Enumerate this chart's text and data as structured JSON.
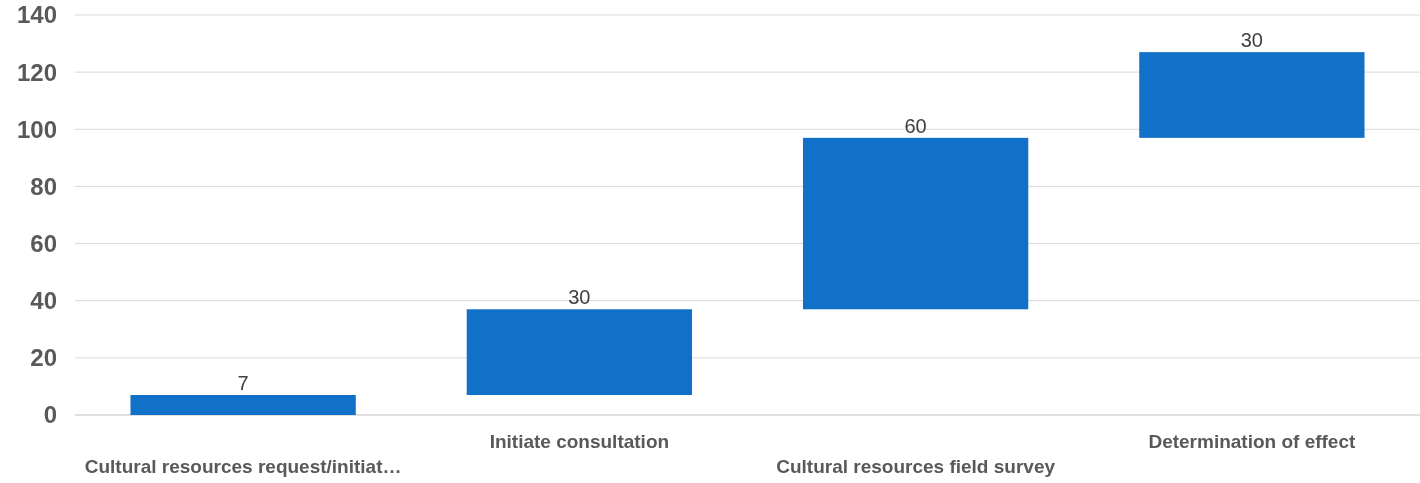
{
  "chart_data": {
    "type": "bar",
    "categories": [
      "Cultural resources request/initiat…",
      "Initiate consultation",
      "Cultural resources field survey",
      "Determination of effect"
    ],
    "values": [
      7,
      30,
      60,
      30
    ],
    "base": [
      0,
      7,
      37,
      97
    ],
    "color": "#1170c8",
    "ylim": [
      0,
      140
    ],
    "yticks": [
      0,
      20,
      40,
      60,
      80,
      100,
      120,
      140
    ],
    "grid": "y",
    "data_labels": true
  }
}
